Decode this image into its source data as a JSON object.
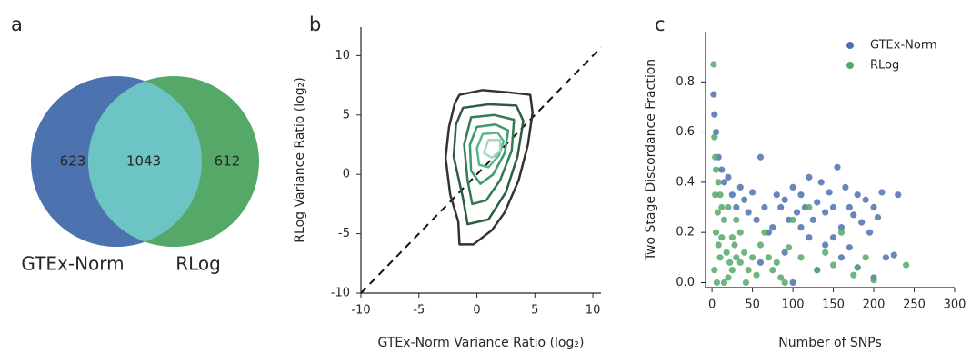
{
  "chart_data": [
    {
      "type": "venn",
      "panel_label": "a",
      "sets": [
        {
          "name": "GTEx-Norm",
          "color": "#4c72b0"
        },
        {
          "name": "RLog",
          "color": "#55a868"
        }
      ],
      "overlap_color": "#6cc5c4",
      "values": [
        623,
        1043,
        612
      ]
    },
    {
      "type": "contour",
      "panel_label": "b",
      "x_label": "GTEx-Norm Variance Ratio (log₂)",
      "y_label": "RLog Variance Ratio (log₂)",
      "xlim": [
        -10,
        10.7
      ],
      "ylim": [
        -10,
        12.4
      ],
      "xticks": [
        -10,
        -5,
        0,
        5,
        10
      ],
      "yticks": [
        -10,
        -5,
        0,
        5,
        10
      ],
      "diagonal": true,
      "levels": [
        {
          "color": "#333333",
          "x": [
            -1.5,
            0.5,
            2.8,
            4.6,
            4.8,
            4.4,
            3.6,
            2.4,
            1.3,
            -0.3,
            -1.5,
            -1.6,
            -2.3,
            -2.7,
            -2.4,
            -1.9
          ],
          "y": [
            6.7,
            7.1,
            6.9,
            6.7,
            5.2,
            2.5,
            -0.5,
            -3.2,
            -4.7,
            -5.9,
            -5.9,
            -4.0,
            -1.7,
            1.4,
            4.0,
            6.0
          ]
        },
        {
          "color": "#2a5e3f",
          "x": [
            -1.2,
            1,
            3.4,
            4,
            3.5,
            2.5,
            1,
            -0.8,
            -1.2,
            -2,
            -1.8
          ],
          "y": [
            5.6,
            5.9,
            5.8,
            4.5,
            1.5,
            -1.5,
            -3.8,
            -4.2,
            -2,
            1.5,
            4.2
          ]
        },
        {
          "color": "#347b54",
          "x": [
            -0.5,
            1.5,
            3.2,
            3,
            2,
            0.8,
            -0.4,
            -0.8,
            -1.1
          ],
          "y": [
            4.8,
            5,
            4.6,
            2,
            -0.5,
            -2.2,
            -2.5,
            -0.5,
            2.5
          ]
        },
        {
          "color": "#3e9a66",
          "x": [
            0,
            1.6,
            2.7,
            2.4,
            1.4,
            0.3,
            -0.5,
            -0.6
          ],
          "y": [
            4,
            4.2,
            3.7,
            1.8,
            0,
            -0.8,
            0.3,
            2.5
          ]
        },
        {
          "color": "#5fb588",
          "x": [
            0.5,
            1.8,
            2.3,
            1.9,
            1,
            0.2,
            0
          ],
          "y": [
            3.4,
            3.5,
            2.8,
            1.6,
            0.6,
            0.8,
            2.2
          ]
        },
        {
          "color": "#a8d8c4",
          "x": [
            1,
            2,
            2,
            1.3,
            0.6
          ],
          "y": [
            2.9,
            2.9,
            2,
            1.4,
            1.8
          ]
        }
      ]
    },
    {
      "type": "scatter",
      "panel_label": "c",
      "x_label": "Number of SNPs",
      "y_label": "Two Stage Discordance Fraction",
      "xlim": [
        -8,
        300
      ],
      "ylim": [
        -0.02,
        1.0
      ],
      "xticks": [
        0,
        50,
        100,
        150,
        200,
        250,
        300
      ],
      "yticks": [
        {
          "value": 0,
          "label": "0.0"
        },
        {
          "value": 0.2,
          "label": "0.2"
        },
        {
          "value": 0.4,
          "label": "0.4"
        },
        {
          "value": 0.6,
          "label": "0.6"
        },
        {
          "value": 0.8,
          "label": "0.8"
        }
      ],
      "legend": "upper right",
      "series": [
        {
          "name": "GTEx-Norm",
          "color": "#4c72b0",
          "x": [
            2,
            3,
            5,
            8,
            12,
            15,
            20,
            25,
            30,
            35,
            40,
            45,
            50,
            55,
            60,
            65,
            70,
            75,
            80,
            85,
            90,
            95,
            100,
            105,
            110,
            115,
            120,
            125,
            130,
            135,
            140,
            145,
            150,
            155,
            160,
            165,
            170,
            175,
            180,
            185,
            190,
            195,
            200,
            205,
            210,
            215,
            230,
            225,
            200,
            180,
            140,
            120,
            90,
            60,
            100,
            130,
            160,
            110,
            150,
            170
          ],
          "values": [
            0.75,
            0.67,
            0.6,
            0.5,
            0.45,
            0.4,
            0.42,
            0.35,
            0.3,
            0.38,
            0.33,
            0.28,
            0.36,
            0.25,
            0.5,
            0.3,
            0.2,
            0.22,
            0.35,
            0.3,
            0.33,
            0.25,
            0.38,
            0.28,
            0.35,
            0.3,
            0.42,
            0.25,
            0.32,
            0.4,
            0.28,
            0.36,
            0.3,
            0.46,
            0.22,
            0.38,
            0.3,
            0.27,
            0.35,
            0.24,
            0.33,
            0.2,
            0.3,
            0.26,
            0.36,
            0.1,
            0.35,
            0.11,
            0.02,
            0.06,
            0.15,
            0.18,
            0.12,
            0.08,
            0.0,
            0.05,
            0.1,
            0.22,
            0.18,
            0.14
          ]
        },
        {
          "name": "RLog",
          "color": "#55a868",
          "x": [
            2,
            3,
            4,
            5,
            8,
            10,
            12,
            15,
            5,
            8,
            10,
            3,
            6,
            15,
            20,
            25,
            30,
            35,
            40,
            45,
            50,
            55,
            60,
            65,
            70,
            75,
            80,
            85,
            90,
            95,
            100,
            110,
            120,
            130,
            140,
            150,
            160,
            175,
            180,
            190,
            200,
            240,
            20,
            25,
            30,
            18,
            22,
            28,
            35,
            42,
            12,
            7,
            4
          ],
          "values": [
            0.87,
            0.58,
            0.5,
            0.45,
            0.4,
            0.35,
            0.3,
            0.25,
            0.2,
            0.15,
            0.1,
            0.05,
            0.0,
            0.0,
            0.02,
            0.05,
            0.1,
            0.08,
            0.12,
            0.05,
            0.1,
            0.03,
            0.15,
            0.2,
            0.1,
            0.05,
            0.08,
            0.02,
            0.0,
            0.14,
            0.25,
            0.1,
            0.3,
            0.05,
            0.12,
            0.07,
            0.2,
            0.03,
            0.06,
            0.1,
            0.01,
            0.07,
            0.3,
            0.18,
            0.25,
            0.12,
            0.08,
            0.15,
            0.2,
            0.0,
            0.18,
            0.28,
            0.35
          ]
        }
      ]
    }
  ]
}
